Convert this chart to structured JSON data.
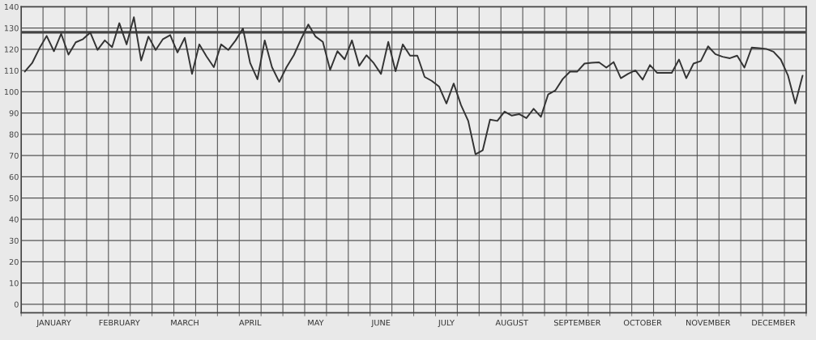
{
  "chart_data": {
    "type": "line",
    "categories": [
      null,
      null,
      null,
      null,
      "JANUARY",
      null,
      null,
      null,
      null,
      null,
      null,
      null,
      null,
      "FEBRUARY",
      null,
      null,
      null,
      null,
      null,
      null,
      null,
      null,
      "MARCH",
      null,
      null,
      null,
      null,
      null,
      null,
      null,
      null,
      "APRIL",
      null,
      null,
      null,
      null,
      null,
      null,
      null,
      null,
      "MAY",
      null,
      null,
      null,
      null,
      null,
      null,
      null,
      null,
      "JUNE",
      null,
      null,
      null,
      null,
      null,
      null,
      null,
      null,
      "JULY",
      null,
      null,
      null,
      null,
      null,
      null,
      null,
      null,
      "AUGUST",
      null,
      null,
      null,
      null,
      null,
      null,
      null,
      null,
      "SEPTEMBER",
      null,
      null,
      null,
      null,
      null,
      null,
      null,
      null,
      "OCTOBER",
      null,
      null,
      null,
      null,
      null,
      null,
      null,
      null,
      "NOVEMBER",
      null,
      null,
      null,
      null,
      null,
      null,
      null,
      null,
      "DECEMBER",
      null,
      null,
      null,
      null
    ],
    "series": [
      {
        "color": "#333333",
        "values": [
          109.5,
          113.5,
          120.4,
          126.3,
          119.1,
          127.3,
          117.5,
          123.3,
          124.8,
          127.9,
          119.7,
          124.2,
          121,
          132.3,
          122.3,
          135.1,
          114.7,
          126,
          119.7,
          124.8,
          126.7,
          118.5,
          125.4,
          108.4,
          122.3,
          116.6,
          111.6,
          122.3,
          119.7,
          124.2,
          129.8,
          113.5,
          105.9,
          124.2,
          111.6,
          104.7,
          111.6,
          117.2,
          124.8,
          131.7,
          126,
          123.5,
          110.3,
          119.1,
          115.3,
          124.2,
          112.2,
          117.2,
          113.5,
          108.4,
          123.5,
          109.7,
          122.3,
          117,
          117,
          107,
          105.1,
          102.4,
          94.5,
          103.9,
          93.8,
          86.3,
          70.6,
          72.5,
          86.9,
          86.3,
          90.7,
          88.8,
          89.5,
          87.6,
          92,
          88.2,
          98.8,
          100.7,
          106,
          109.5,
          109.5,
          113.3,
          113.7,
          113.9,
          111.4,
          114,
          106.4,
          108.5,
          110.1,
          105.7,
          112.6,
          108.9,
          108.9,
          108.9,
          115.2,
          106.4,
          113.3,
          114.5,
          121.4,
          117.7,
          116.5,
          115.8,
          117,
          111.4,
          120.8,
          120.5,
          120.2,
          118.9,
          115.2,
          107.6,
          94.5,
          107.6
        ]
      }
    ],
    "ylim": [
      -4,
      140
    ],
    "yticks": [
      0,
      10,
      20,
      30,
      40,
      50,
      60,
      70,
      80,
      90,
      100,
      110,
      120,
      130,
      140
    ],
    "ref_lines": [
      {
        "axis": "y",
        "value": 128,
        "color": "#444444"
      }
    ],
    "grid": true,
    "marker": "none",
    "line_style": "solid"
  }
}
